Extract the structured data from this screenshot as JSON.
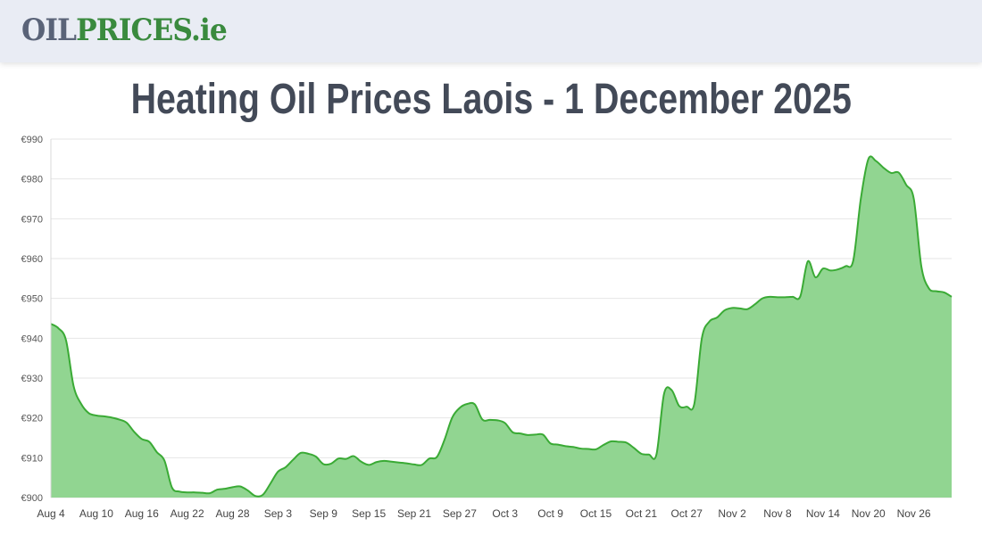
{
  "header": {
    "logo_part1": "OIL",
    "logo_part2": "PRICES.ie"
  },
  "page_title": "Heating Oil Prices Laois - 1 December 2025",
  "colors": {
    "line": "#3aaa35",
    "fill": "#91d591",
    "grid": "#e6e6e6",
    "header_bg": "#e9ecf4",
    "title": "#434a58"
  },
  "chart_data": {
    "type": "area",
    "title": "",
    "xlabel": "",
    "ylabel": "",
    "ylim": [
      900,
      990
    ],
    "grid": true,
    "legend": "none",
    "y_ticks": [
      "€900",
      "€910",
      "€920",
      "€930",
      "€940",
      "€950",
      "€960",
      "€970",
      "€980",
      "€990"
    ],
    "x_ticks": [
      "Aug 4",
      "Aug 10",
      "Aug 16",
      "Aug 22",
      "Aug 28",
      "Sep 3",
      "Sep 9",
      "Sep 15",
      "Sep 21",
      "Sep 27",
      "Oct 3",
      "Oct 9",
      "Oct 15",
      "Oct 21",
      "Oct 27",
      "Nov 2",
      "Nov 8",
      "Nov 14",
      "Nov 20",
      "Nov 26"
    ],
    "x": [
      "Aug 4",
      "Aug 5",
      "Aug 6",
      "Aug 7",
      "Aug 8",
      "Aug 9",
      "Aug 10",
      "Aug 11",
      "Aug 12",
      "Aug 13",
      "Aug 14",
      "Aug 15",
      "Aug 16",
      "Aug 17",
      "Aug 18",
      "Aug 19",
      "Aug 20",
      "Aug 21",
      "Aug 22",
      "Aug 23",
      "Aug 24",
      "Aug 25",
      "Aug 26",
      "Aug 27",
      "Aug 28",
      "Aug 29",
      "Aug 30",
      "Aug 31",
      "Sep 1",
      "Sep 2",
      "Sep 3",
      "Sep 4",
      "Sep 5",
      "Sep 6",
      "Sep 7",
      "Sep 8",
      "Sep 9",
      "Sep 10",
      "Sep 11",
      "Sep 12",
      "Sep 13",
      "Sep 14",
      "Sep 15",
      "Sep 16",
      "Sep 17",
      "Sep 18",
      "Sep 19",
      "Sep 20",
      "Sep 21",
      "Sep 22",
      "Sep 23",
      "Sep 24",
      "Sep 25",
      "Sep 26",
      "Sep 27",
      "Sep 28",
      "Sep 29",
      "Sep 30",
      "Oct 1",
      "Oct 2",
      "Oct 3",
      "Oct 4",
      "Oct 5",
      "Oct 6",
      "Oct 7",
      "Oct 8",
      "Oct 9",
      "Oct 10",
      "Oct 11",
      "Oct 12",
      "Oct 13",
      "Oct 14",
      "Oct 15",
      "Oct 16",
      "Oct 17",
      "Oct 18",
      "Oct 19",
      "Oct 20",
      "Oct 21",
      "Oct 22",
      "Oct 23",
      "Oct 24",
      "Oct 25",
      "Oct 26",
      "Oct 27",
      "Oct 28",
      "Oct 29",
      "Oct 30",
      "Oct 31",
      "Nov 1",
      "Nov 2",
      "Nov 3",
      "Nov 4",
      "Nov 5",
      "Nov 6",
      "Nov 7",
      "Nov 8",
      "Nov 9",
      "Nov 10",
      "Nov 11",
      "Nov 12",
      "Nov 13",
      "Nov 14",
      "Nov 15",
      "Nov 16",
      "Nov 17",
      "Nov 18",
      "Nov 19",
      "Nov 20",
      "Nov 21",
      "Nov 22",
      "Nov 23",
      "Nov 24",
      "Nov 25",
      "Nov 26",
      "Nov 27",
      "Nov 28",
      "Nov 29",
      "Nov 30",
      "Dec 1"
    ],
    "values": [
      943.6,
      942.5,
      939.5,
      928,
      923.5,
      921.2,
      920.6,
      920.4,
      920.1,
      919.6,
      918.8,
      916.5,
      914.7,
      914,
      911.4,
      909.3,
      902.5,
      901.5,
      901.3,
      901.3,
      901.2,
      901.1,
      902,
      902.2,
      902.6,
      902.8,
      901.8,
      900.4,
      900.7,
      903.5,
      906.5,
      907.6,
      909.5,
      911.2,
      911,
      910.3,
      908.4,
      908.5,
      909.8,
      909.7,
      910.4,
      909,
      908.2,
      908.9,
      909.2,
      909,
      908.8,
      908.6,
      908.3,
      908.2,
      909.8,
      910.2,
      914.5,
      920,
      922.5,
      923.5,
      923.4,
      919.6,
      919.5,
      919.4,
      918.7,
      916.4,
      916.1,
      915.7,
      915.8,
      915.8,
      913.6,
      913.3,
      912.9,
      912.7,
      912.3,
      912.2,
      912.1,
      913.2,
      914.1,
      914,
      913.8,
      912.5,
      911,
      910.8,
      910.8,
      926,
      927,
      923,
      922.8,
      923.5,
      940,
      944.2,
      945.2,
      947,
      947.6,
      947.5,
      947.3,
      948.5,
      950,
      950.4,
      950.3,
      950.3,
      950.4,
      950.5,
      959.3,
      955.3,
      957.5,
      957,
      957.3,
      958.1,
      959.5,
      975,
      985,
      984.5,
      982.8,
      981.5,
      981.6,
      978.5,
      975,
      958,
      952.5,
      951.8,
      951.5,
      950.4
    ]
  }
}
